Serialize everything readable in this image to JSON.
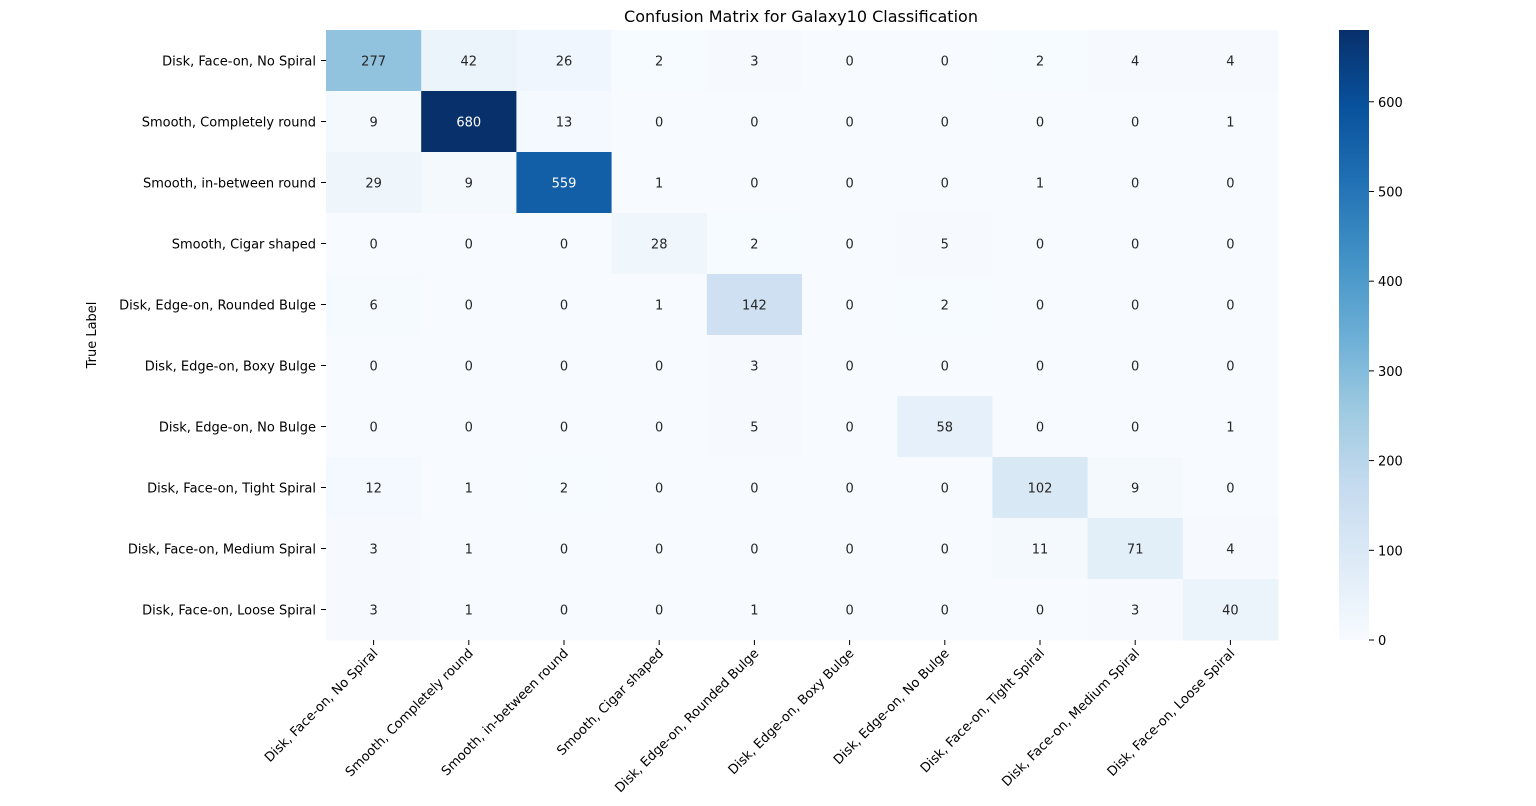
{
  "chart_data": {
    "type": "heatmap",
    "title": "Confusion Matrix for Galaxy10 Classification",
    "xlabel": "",
    "ylabel": "True Label",
    "x_categories": [
      "Disk, Face-on, No Spiral",
      "Smooth, Completely round",
      "Smooth, in-between round",
      "Smooth, Cigar shaped",
      "Disk, Edge-on, Rounded Bulge",
      "Disk, Edge-on, Boxy Bulge",
      "Disk, Edge-on, No Bulge",
      "Disk, Face-on, Tight Spiral",
      "Disk, Face-on, Medium Spiral",
      "Disk, Face-on, Loose Spiral"
    ],
    "y_categories": [
      "Disk, Face-on, No Spiral",
      "Smooth, Completely round",
      "Smooth, in-between round",
      "Smooth, Cigar shaped",
      "Disk, Edge-on, Rounded Bulge",
      "Disk, Edge-on, Boxy Bulge",
      "Disk, Edge-on, No Bulge",
      "Disk, Face-on, Tight Spiral",
      "Disk, Face-on, Medium Spiral",
      "Disk, Face-on, Loose Spiral"
    ],
    "matrix": [
      [
        277,
        42,
        26,
        2,
        3,
        0,
        0,
        2,
        4,
        4
      ],
      [
        9,
        680,
        13,
        0,
        0,
        0,
        0,
        0,
        0,
        1
      ],
      [
        29,
        9,
        559,
        1,
        0,
        0,
        0,
        1,
        0,
        0
      ],
      [
        0,
        0,
        0,
        28,
        2,
        0,
        5,
        0,
        0,
        0
      ],
      [
        6,
        0,
        0,
        1,
        142,
        0,
        2,
        0,
        0,
        0
      ],
      [
        0,
        0,
        0,
        0,
        3,
        0,
        0,
        0,
        0,
        0
      ],
      [
        0,
        0,
        0,
        0,
        5,
        0,
        58,
        0,
        0,
        1
      ],
      [
        12,
        1,
        2,
        0,
        0,
        0,
        0,
        102,
        9,
        0
      ],
      [
        3,
        1,
        0,
        0,
        0,
        0,
        0,
        11,
        71,
        4
      ],
      [
        3,
        1,
        0,
        0,
        1,
        0,
        0,
        0,
        3,
        40
      ]
    ],
    "colormap": "Blues",
    "colorbar": {
      "range": [
        0,
        680
      ],
      "ticks": [
        0,
        100,
        200,
        300,
        400,
        500,
        600
      ]
    },
    "annotations": true,
    "grid": false
  }
}
